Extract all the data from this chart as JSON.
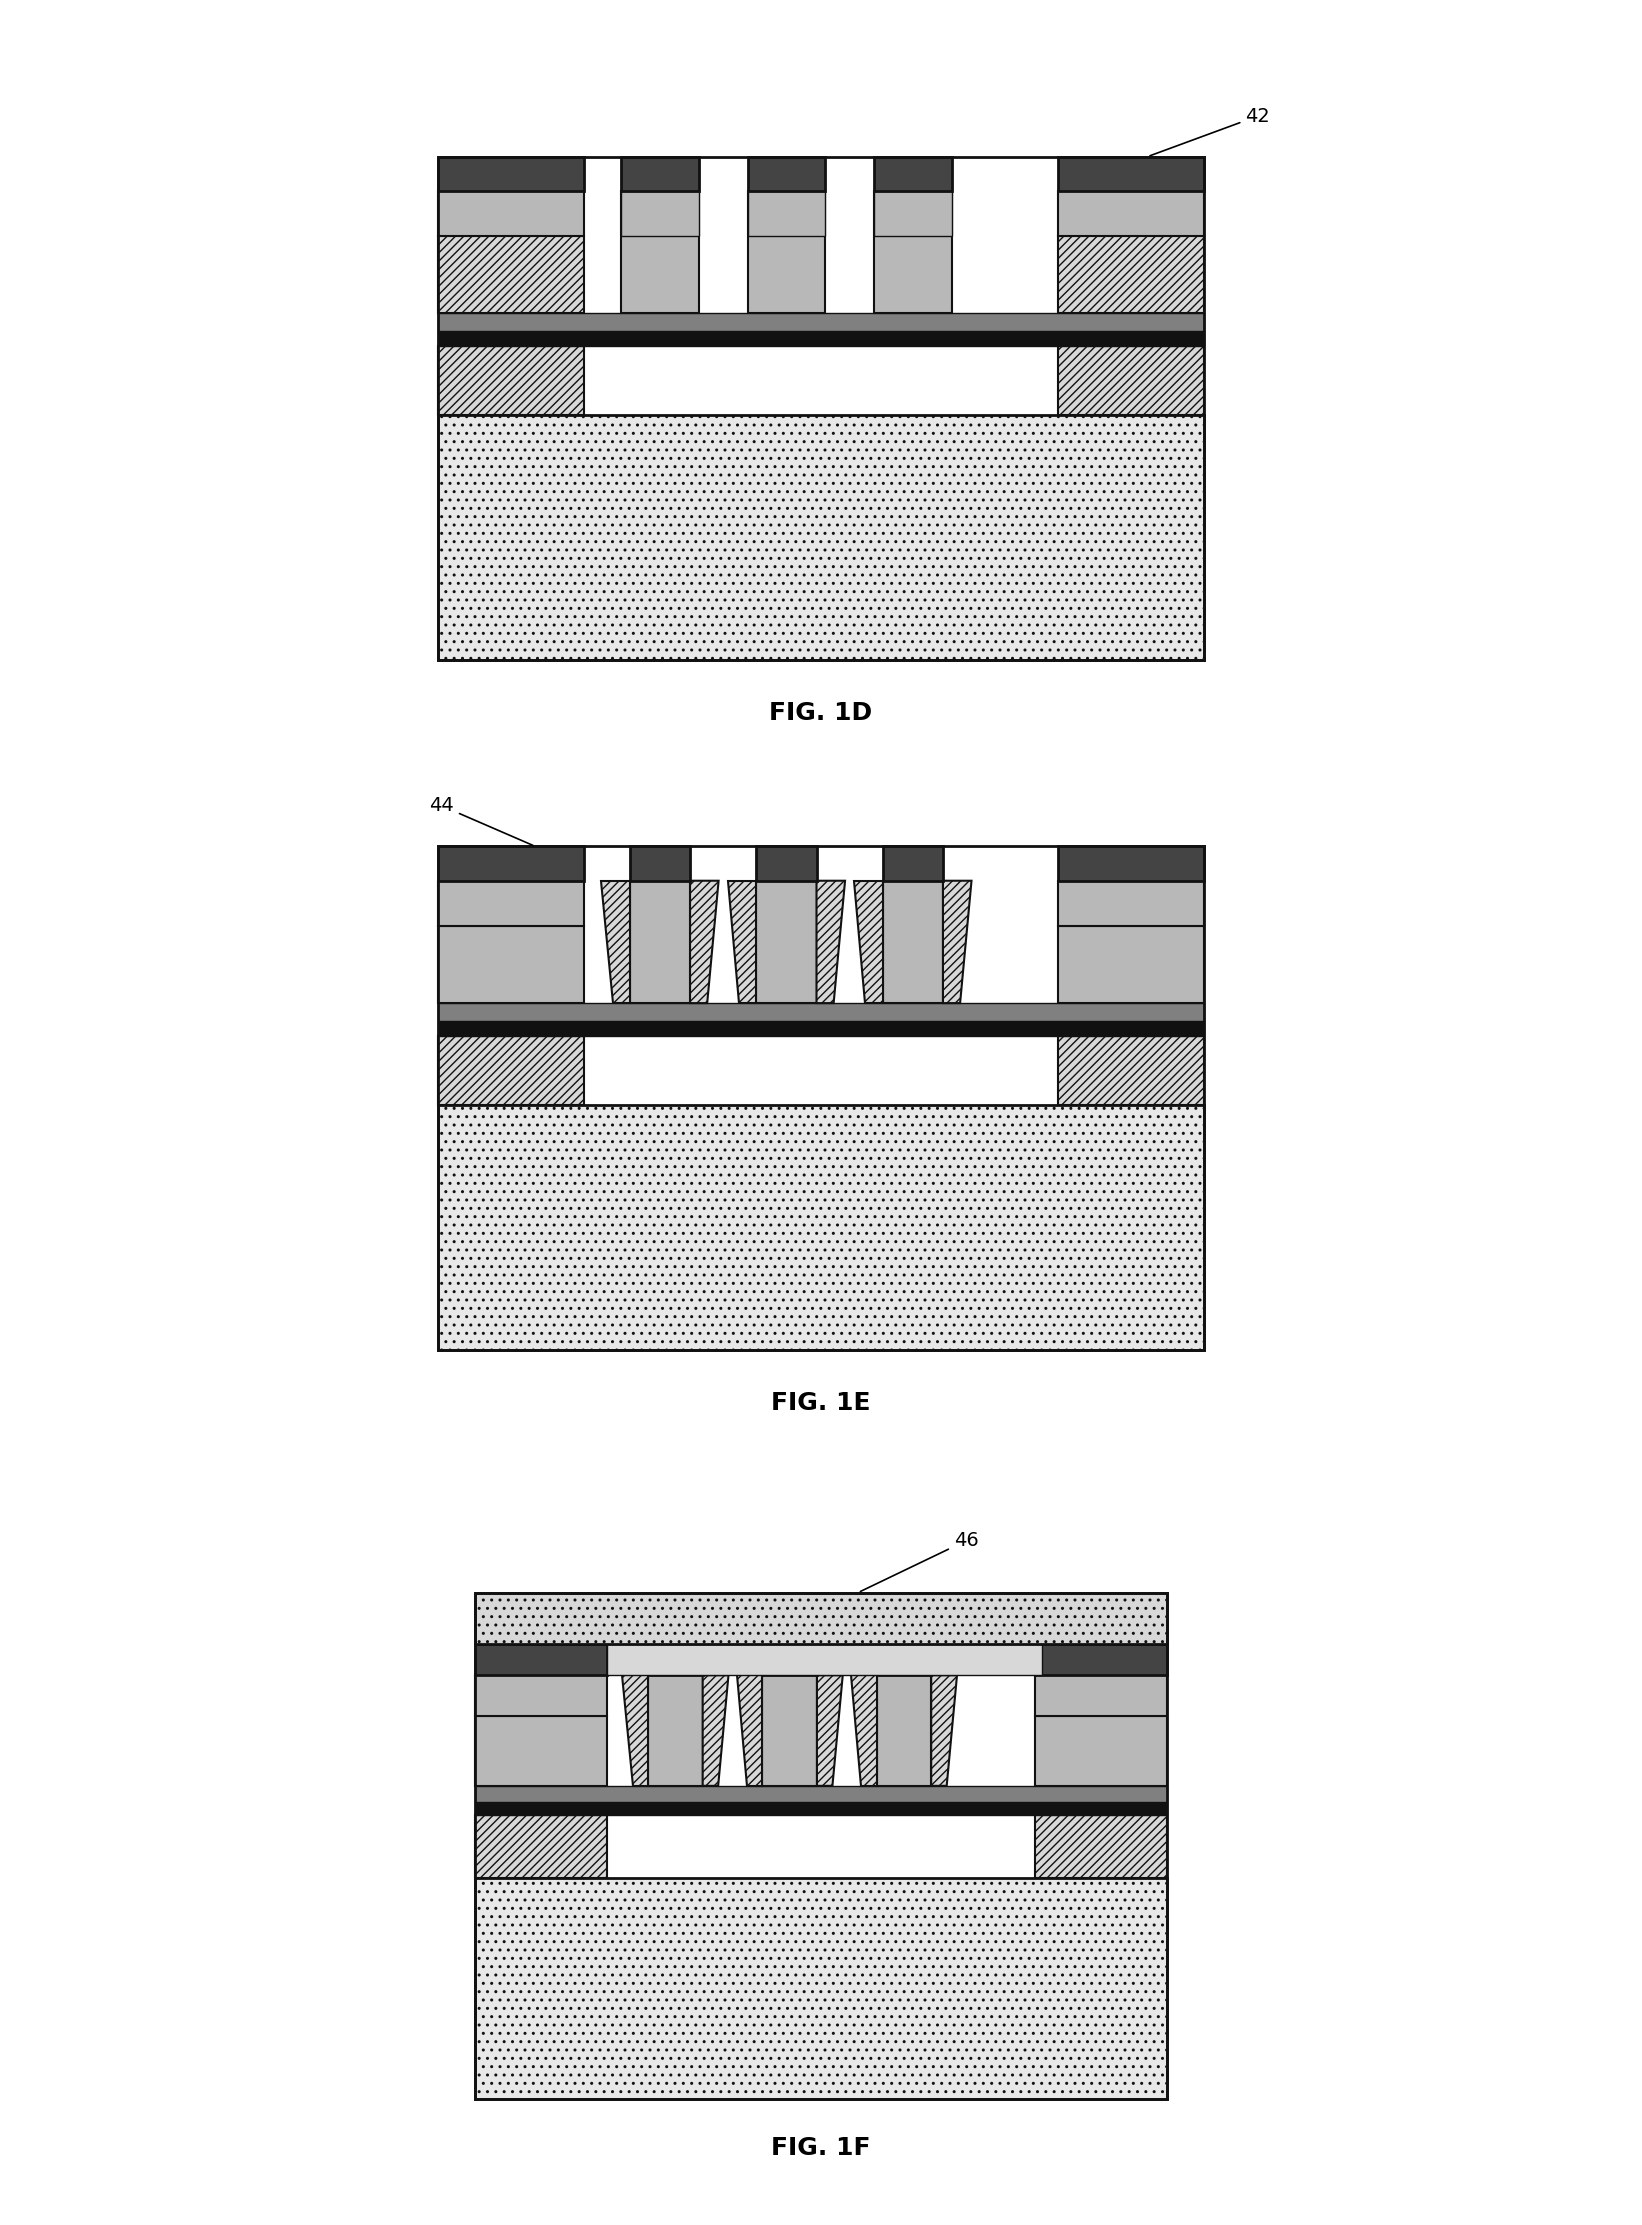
{
  "bg_color": "#ffffff",
  "C_BLACK": "#111111",
  "C_DARK": "#222222",
  "C_DGRAY": "#444444",
  "C_MGRAY": "#808080",
  "C_LGRAY": "#b8b8b8",
  "C_XLGRAY": "#d8d8d8",
  "C_DOT": "#e8e8e8",
  "C_WHITE": "#f8f8f8",
  "fig1d_label": "FIG. 1D",
  "fig1e_label": "FIG. 1E",
  "fig1f_label": "FIG. 1F",
  "ann1d": "42",
  "ann1e": "44",
  "ann1f": "46"
}
